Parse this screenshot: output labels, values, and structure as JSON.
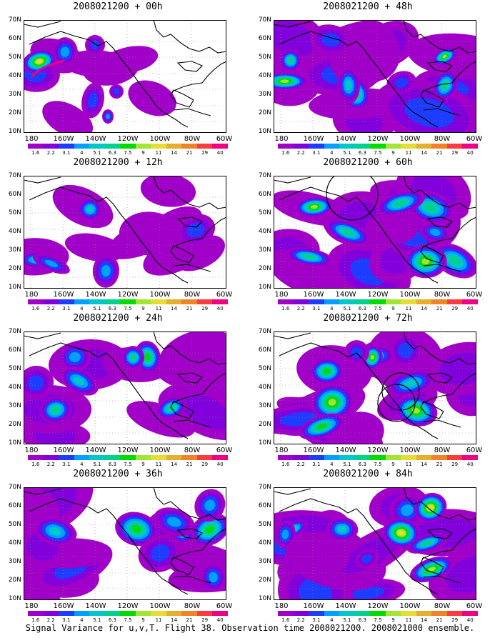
{
  "figure": {
    "caption": "Signal Variance for u,v,T. Flight 38. Observation time 2008021200. 2008021000 ensemble."
  },
  "lat_labels": [
    "70N",
    "60N",
    "50N",
    "40N",
    "30N",
    "20N",
    "10N"
  ],
  "lon_labels": [
    "180",
    "160W",
    "140W",
    "120W",
    "100W",
    "80W",
    "60W"
  ],
  "colorbar": {
    "labels": [
      "1.6",
      "2.2",
      "3.1",
      "4",
      "5.1",
      "6.3",
      "7.5",
      "9",
      "11",
      "14",
      "21",
      "29",
      "40"
    ],
    "colors": [
      "#a000c8",
      "#8200dc",
      "#1e3cff",
      "#00a0ff",
      "#00c8c8",
      "#00d28c",
      "#00dc00",
      "#a0e632",
      "#e6dc32",
      "#e6af2d",
      "#f08228",
      "#fa3c3c",
      "#f00082"
    ]
  },
  "panels": [
    {
      "title": "2008021200 + 00h",
      "lead": "00h",
      "coverage": 0.18
    },
    {
      "title": "2008021200 + 12h",
      "lead": "12h",
      "coverage": 0.45
    },
    {
      "title": "2008021200 + 24h",
      "lead": "24h",
      "coverage": 0.65
    },
    {
      "title": "2008021200 + 36h",
      "lead": "36h",
      "coverage": 0.8
    },
    {
      "title": "2008021200 + 48h",
      "lead": "48h",
      "coverage": 0.92
    },
    {
      "title": "2008021200 + 60h",
      "lead": "60h",
      "coverage": 0.88
    },
    {
      "title": "2008021200 + 72h",
      "lead": "72h",
      "coverage": 0.93
    },
    {
      "title": "2008021200 + 84h",
      "lead": "84h",
      "coverage": 0.97
    }
  ]
}
